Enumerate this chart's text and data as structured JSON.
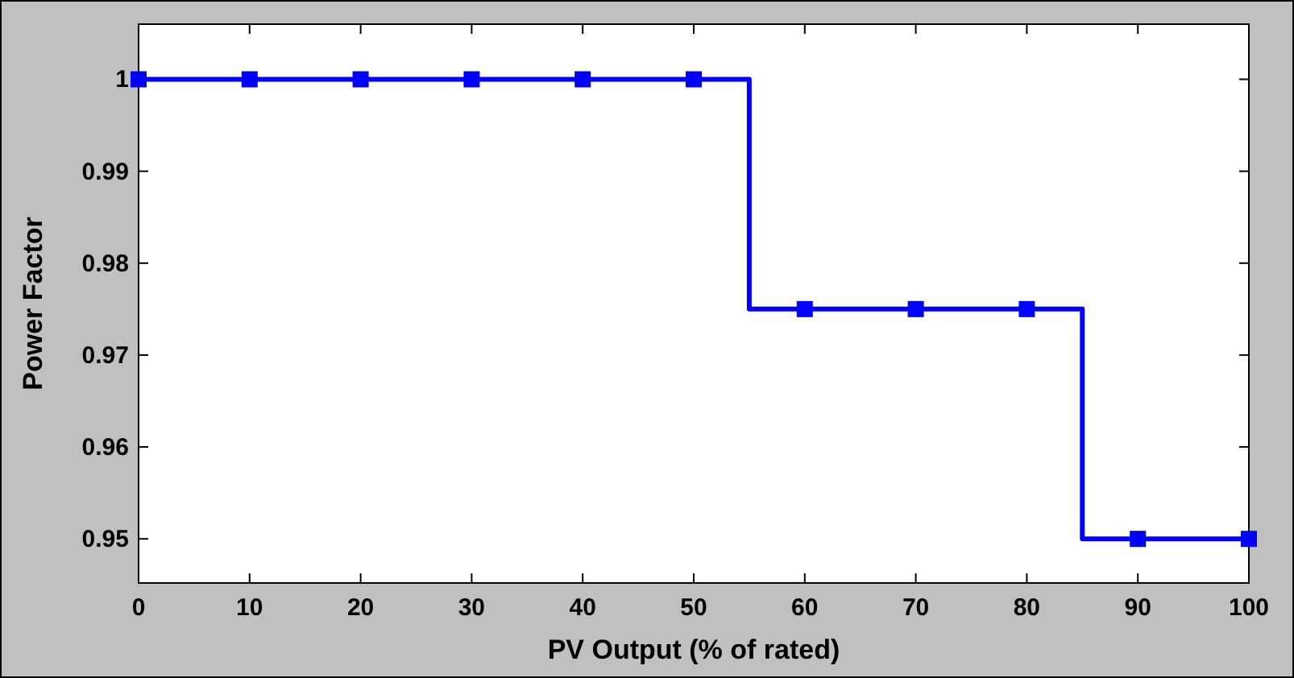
{
  "chart_data": {
    "type": "step",
    "xlabel": "PV Output (% of rated)",
    "ylabel": "Power Factor",
    "x": [
      0,
      10,
      20,
      30,
      40,
      50,
      60,
      70,
      80,
      90,
      100
    ],
    "series": [
      {
        "color": "#0000ff",
        "values": [
          1,
          1,
          1,
          1,
          1,
          1,
          0.975,
          0.975,
          0.975,
          0.95,
          0.95
        ]
      }
    ],
    "xlim": [
      0,
      100
    ],
    "ylim": [
      0.9452,
      1.006
    ],
    "xticks": [
      0,
      10,
      20,
      30,
      40,
      50,
      60,
      70,
      80,
      90,
      100
    ],
    "yticks": [
      0.95,
      0.96,
      0.97,
      0.98,
      0.99,
      1
    ],
    "marker": "square",
    "line_style": "solid",
    "grid": false
  }
}
